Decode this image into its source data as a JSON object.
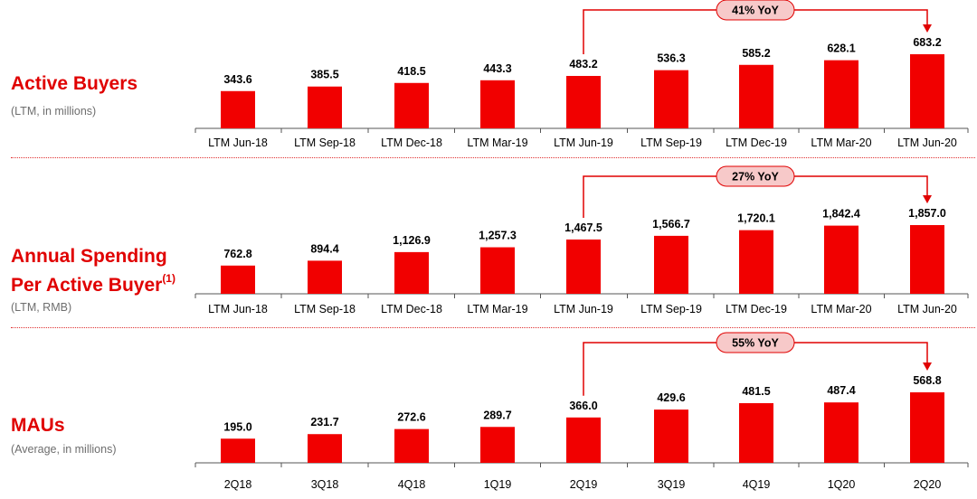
{
  "colors": {
    "bar": "#f10000",
    "accent": "#e00000",
    "pill": "#f7c9c9",
    "axis": "#555555"
  },
  "panels": [
    {
      "title": "Active Buyers",
      "title_sup": "",
      "title_line2": "",
      "subtitle": "(LTM, in millions)"
    },
    {
      "title": "Annual Spending",
      "title_line2": "Per Active Buyer",
      "title_sup": "(1)",
      "subtitle": "(LTM, RMB)"
    },
    {
      "title": "MAUs",
      "title_sup": "",
      "title_line2": "",
      "subtitle": "(Average, in millions)"
    }
  ],
  "chart_data": [
    {
      "type": "bar",
      "title": "Active Buyers",
      "subtitle": "(LTM, in millions)",
      "categories": [
        "LTM Jun-18",
        "LTM Sep-18",
        "LTM Dec-18",
        "LTM Mar-19",
        "LTM Jun-19",
        "LTM Sep-19",
        "LTM Dec-19",
        "LTM Mar-20",
        "LTM Jun-20"
      ],
      "values": [
        343.6,
        385.5,
        418.5,
        443.3,
        483.2,
        536.3,
        585.2,
        628.1,
        683.2
      ],
      "value_labels": [
        "343.6",
        "385.5",
        "418.5",
        "443.3",
        "483.2",
        "536.3",
        "585.2",
        "628.1",
        "683.2"
      ],
      "annotation": {
        "text": "41% YoY",
        "from": "LTM Jun-19",
        "to": "LTM Jun-20"
      }
    },
    {
      "type": "bar",
      "title": "Annual Spending Per Active Buyer(1)",
      "subtitle": "(LTM, RMB)",
      "categories": [
        "LTM Jun-18",
        "LTM Sep-18",
        "LTM Dec-18",
        "LTM Mar-19",
        "LTM Jun-19",
        "LTM Sep-19",
        "LTM Dec-19",
        "LTM Mar-20",
        "LTM Jun-20"
      ],
      "values": [
        762.8,
        894.4,
        1126.9,
        1257.3,
        1467.5,
        1566.7,
        1720.1,
        1842.4,
        1857.0
      ],
      "value_labels": [
        "762.8",
        "894.4",
        "1,126.9",
        "1,257.3",
        "1,467.5",
        "1,566.7",
        "1,720.1",
        "1,842.4",
        "1,857.0"
      ],
      "annotation": {
        "text": "27% YoY",
        "from": "LTM Jun-19",
        "to": "LTM Jun-20"
      }
    },
    {
      "type": "bar",
      "title": "MAUs",
      "subtitle": "(Average, in millions)",
      "categories": [
        "2Q18",
        "3Q18",
        "4Q18",
        "1Q19",
        "2Q19",
        "3Q19",
        "4Q19",
        "1Q20",
        "2Q20"
      ],
      "values": [
        195.0,
        231.7,
        272.6,
        289.7,
        366.0,
        429.6,
        481.5,
        487.4,
        568.8
      ],
      "value_labels": [
        "195.0",
        "231.7",
        "272.6",
        "289.7",
        "366.0",
        "429.6",
        "481.5",
        "487.4",
        "568.8"
      ],
      "annotation": {
        "text": "55% YoY",
        "from": "2Q19",
        "to": "2Q20"
      }
    }
  ]
}
